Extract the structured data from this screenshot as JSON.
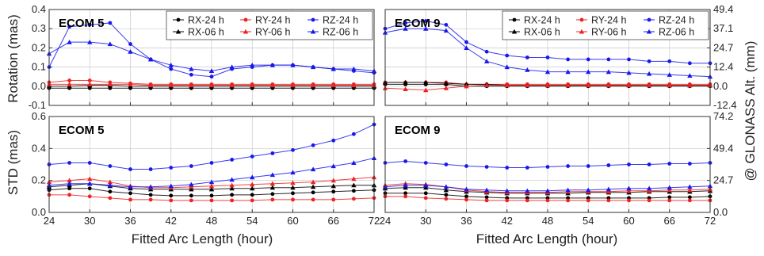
{
  "figure": {
    "ylabel_top": "Rotation (mas)",
    "ylabel_bottom": "STD (mas)",
    "ylabel_right": "@ GLONASS Alt. (mm)",
    "xlabel": "Fitted Arc Length (hour)"
  },
  "colors": {
    "black": "#000000",
    "red": "#ee2222",
    "blue": "#1818ee",
    "grid": "#c8c8c8"
  },
  "chart_data": [
    {
      "type": "scatter",
      "panel": "top-left",
      "label": "ECOM 5",
      "xlim": [
        24,
        72
      ],
      "ylim": [
        -0.1,
        0.4
      ],
      "xticks": [
        "24",
        "30",
        "36",
        "42",
        "48",
        "54",
        "60",
        "66",
        "72"
      ],
      "yticks": [
        "-0.1",
        "0.0",
        "0.1",
        "0.2",
        "0.3",
        "0.4"
      ],
      "legend_position": "top-right",
      "x": [
        24,
        27,
        30,
        33,
        36,
        39,
        42,
        45,
        48,
        51,
        54,
        57,
        60,
        63,
        66,
        69,
        72
      ],
      "series": [
        {
          "name": "RX-24 h",
          "color": "black",
          "marker": "circle",
          "values": [
            -0.01,
            -0.01,
            -0.01,
            -0.01,
            -0.01,
            -0.01,
            -0.01,
            -0.01,
            -0.01,
            -0.01,
            -0.01,
            -0.01,
            -0.01,
            -0.01,
            -0.01,
            -0.01,
            -0.01
          ]
        },
        {
          "name": "RY-24 h",
          "color": "red",
          "marker": "circle",
          "values": [
            0.02,
            0.03,
            0.03,
            0.02,
            0.015,
            0.01,
            0.01,
            0.01,
            0.01,
            0.01,
            0.01,
            0.01,
            0.01,
            0.01,
            0.01,
            0.01,
            0.01
          ]
        },
        {
          "name": "RZ-24 h",
          "color": "blue",
          "marker": "circle",
          "values": [
            0.1,
            0.31,
            0.32,
            0.33,
            0.22,
            0.14,
            0.09,
            0.06,
            0.05,
            0.09,
            0.1,
            0.11,
            0.11,
            0.1,
            0.09,
            0.08,
            0.07
          ]
        },
        {
          "name": "RX-06 h",
          "color": "black",
          "marker": "triangle",
          "values": [
            0.0,
            0.0,
            0.005,
            0.005,
            0.0,
            0.0,
            0.0,
            0.0,
            0.0,
            0.0,
            0.0,
            0.0,
            0.0,
            0.0,
            0.0,
            0.0,
            0.0
          ]
        },
        {
          "name": "RY-06 h",
          "color": "red",
          "marker": "triangle",
          "values": [
            0.01,
            0.01,
            0.01,
            0.01,
            0.01,
            0.005,
            0.005,
            0.005,
            0.005,
            0.005,
            0.005,
            0.005,
            0.005,
            0.005,
            0.005,
            0.005,
            0.005
          ]
        },
        {
          "name": "RZ-06 h",
          "color": "blue",
          "marker": "triangle",
          "values": [
            0.17,
            0.23,
            0.23,
            0.22,
            0.18,
            0.14,
            0.11,
            0.09,
            0.08,
            0.1,
            0.11,
            0.11,
            0.11,
            0.1,
            0.09,
            0.09,
            0.08
          ]
        }
      ]
    },
    {
      "type": "scatter",
      "panel": "top-right",
      "label": "ECOM 9",
      "xlim": [
        24,
        72
      ],
      "ylim": [
        -0.1,
        0.4
      ],
      "xticks": [
        "24",
        "30",
        "36",
        "42",
        "48",
        "54",
        "60",
        "66",
        "72"
      ],
      "yticks_right": [
        "-12.4",
        "0.0",
        "12.4",
        "24.7",
        "37.1",
        "49.4"
      ],
      "legend_position": "top-right",
      "x": [
        24,
        27,
        30,
        33,
        36,
        39,
        42,
        45,
        48,
        51,
        54,
        57,
        60,
        63,
        66,
        69,
        72
      ],
      "series": [
        {
          "name": "RX-24 h",
          "color": "black",
          "marker": "circle",
          "values": [
            0.01,
            0.01,
            0.01,
            0.01,
            0.0,
            0.0,
            0.0,
            0.0,
            0.0,
            0.0,
            0.0,
            0.0,
            0.0,
            0.0,
            0.0,
            0.0,
            0.0
          ]
        },
        {
          "name": "RY-24 h",
          "color": "red",
          "marker": "circle",
          "values": [
            0.02,
            0.02,
            0.02,
            0.02,
            0.01,
            0.01,
            0.01,
            0.01,
            0.01,
            0.01,
            0.01,
            0.01,
            0.01,
            0.01,
            0.01,
            0.01,
            0.01
          ]
        },
        {
          "name": "RZ-24 h",
          "color": "blue",
          "marker": "circle",
          "values": [
            0.3,
            0.33,
            0.34,
            0.32,
            0.23,
            0.18,
            0.16,
            0.15,
            0.15,
            0.14,
            0.14,
            0.14,
            0.14,
            0.13,
            0.13,
            0.12,
            0.12
          ]
        },
        {
          "name": "RX-06 h",
          "color": "black",
          "marker": "triangle",
          "values": [
            0.02,
            0.02,
            0.02,
            0.015,
            0.01,
            0.01,
            0.005,
            0.005,
            0.005,
            0.005,
            0.005,
            0.005,
            0.005,
            0.005,
            0.005,
            0.005,
            0.005
          ]
        },
        {
          "name": "RY-06 h",
          "color": "red",
          "marker": "triangle",
          "values": [
            -0.01,
            -0.015,
            -0.02,
            -0.01,
            0.0,
            0.005,
            0.005,
            0.005,
            0.005,
            0.005,
            0.005,
            0.005,
            0.005,
            0.005,
            0.005,
            0.005,
            0.005
          ]
        },
        {
          "name": "RZ-06 h",
          "color": "blue",
          "marker": "triangle",
          "values": [
            0.28,
            0.3,
            0.3,
            0.29,
            0.2,
            0.13,
            0.1,
            0.085,
            0.075,
            0.075,
            0.075,
            0.075,
            0.07,
            0.065,
            0.06,
            0.055,
            0.05
          ]
        }
      ]
    },
    {
      "type": "scatter",
      "panel": "bottom-left",
      "label": "ECOM 5",
      "xlim": [
        24,
        72
      ],
      "ylim": [
        0.0,
        0.6
      ],
      "xticks": [
        "24",
        "30",
        "36",
        "42",
        "48",
        "54",
        "60",
        "66",
        "72"
      ],
      "yticks": [
        "0.0",
        "0.2",
        "0.4",
        "0.6"
      ],
      "x": [
        24,
        27,
        30,
        33,
        36,
        39,
        42,
        45,
        48,
        51,
        54,
        57,
        60,
        63,
        66,
        69,
        72
      ],
      "series": [
        {
          "name": "RX-24 h",
          "color": "black",
          "marker": "circle",
          "values": [
            0.14,
            0.15,
            0.15,
            0.13,
            0.12,
            0.11,
            0.105,
            0.105,
            0.105,
            0.11,
            0.11,
            0.115,
            0.12,
            0.125,
            0.13,
            0.135,
            0.14
          ]
        },
        {
          "name": "RY-24 h",
          "color": "red",
          "marker": "circle",
          "values": [
            0.11,
            0.11,
            0.1,
            0.09,
            0.08,
            0.08,
            0.075,
            0.075,
            0.075,
            0.075,
            0.075,
            0.08,
            0.08,
            0.08,
            0.08,
            0.085,
            0.09
          ]
        },
        {
          "name": "RZ-24 h",
          "color": "blue",
          "marker": "circle",
          "values": [
            0.3,
            0.31,
            0.31,
            0.29,
            0.27,
            0.27,
            0.28,
            0.29,
            0.31,
            0.33,
            0.35,
            0.37,
            0.39,
            0.42,
            0.45,
            0.49,
            0.55
          ]
        },
        {
          "name": "RX-06 h",
          "color": "black",
          "marker": "triangle",
          "values": [
            0.16,
            0.17,
            0.18,
            0.165,
            0.15,
            0.145,
            0.145,
            0.145,
            0.145,
            0.15,
            0.15,
            0.155,
            0.155,
            0.16,
            0.165,
            0.17,
            0.17
          ]
        },
        {
          "name": "RY-06 h",
          "color": "red",
          "marker": "triangle",
          "values": [
            0.19,
            0.2,
            0.21,
            0.19,
            0.165,
            0.155,
            0.155,
            0.16,
            0.165,
            0.17,
            0.175,
            0.18,
            0.185,
            0.19,
            0.2,
            0.21,
            0.22
          ]
        },
        {
          "name": "RZ-06 h",
          "color": "blue",
          "marker": "triangle",
          "values": [
            0.17,
            0.18,
            0.18,
            0.17,
            0.16,
            0.16,
            0.165,
            0.175,
            0.19,
            0.205,
            0.22,
            0.235,
            0.25,
            0.27,
            0.29,
            0.31,
            0.34
          ]
        }
      ]
    },
    {
      "type": "scatter",
      "panel": "bottom-right",
      "label": "ECOM 9",
      "xlim": [
        24,
        72
      ],
      "ylim": [
        0.0,
        0.6
      ],
      "xticks": [
        "24",
        "30",
        "36",
        "42",
        "48",
        "54",
        "60",
        "66",
        "72"
      ],
      "yticks_right": [
        "0.0",
        "24.7",
        "49.4",
        "74.2"
      ],
      "x": [
        24,
        27,
        30,
        33,
        36,
        39,
        42,
        45,
        48,
        51,
        54,
        57,
        60,
        63,
        66,
        69,
        72
      ],
      "series": [
        {
          "name": "RX-24 h",
          "color": "black",
          "marker": "circle",
          "values": [
            0.12,
            0.12,
            0.12,
            0.11,
            0.1,
            0.095,
            0.09,
            0.09,
            0.09,
            0.09,
            0.09,
            0.09,
            0.09,
            0.09,
            0.095,
            0.095,
            0.1
          ]
        },
        {
          "name": "RY-24 h",
          "color": "red",
          "marker": "circle",
          "values": [
            0.1,
            0.1,
            0.09,
            0.085,
            0.08,
            0.075,
            0.075,
            0.075,
            0.075,
            0.075,
            0.075,
            0.075,
            0.075,
            0.075,
            0.075,
            0.075,
            0.075
          ]
        },
        {
          "name": "RZ-24 h",
          "color": "blue",
          "marker": "circle",
          "values": [
            0.31,
            0.32,
            0.31,
            0.3,
            0.29,
            0.285,
            0.28,
            0.28,
            0.285,
            0.29,
            0.29,
            0.295,
            0.3,
            0.3,
            0.305,
            0.305,
            0.31
          ]
        },
        {
          "name": "RX-06 h",
          "color": "black",
          "marker": "triangle",
          "values": [
            0.15,
            0.155,
            0.155,
            0.14,
            0.13,
            0.125,
            0.12,
            0.12,
            0.12,
            0.12,
            0.125,
            0.125,
            0.125,
            0.13,
            0.13,
            0.13,
            0.135
          ]
        },
        {
          "name": "RY-06 h",
          "color": "red",
          "marker": "triangle",
          "values": [
            0.17,
            0.18,
            0.175,
            0.16,
            0.14,
            0.13,
            0.125,
            0.125,
            0.125,
            0.13,
            0.13,
            0.13,
            0.135,
            0.135,
            0.14,
            0.14,
            0.145
          ]
        },
        {
          "name": "RZ-06 h",
          "color": "blue",
          "marker": "triangle",
          "values": [
            0.16,
            0.17,
            0.17,
            0.16,
            0.145,
            0.14,
            0.135,
            0.135,
            0.135,
            0.14,
            0.14,
            0.145,
            0.15,
            0.15,
            0.155,
            0.16,
            0.165
          ]
        }
      ]
    }
  ]
}
